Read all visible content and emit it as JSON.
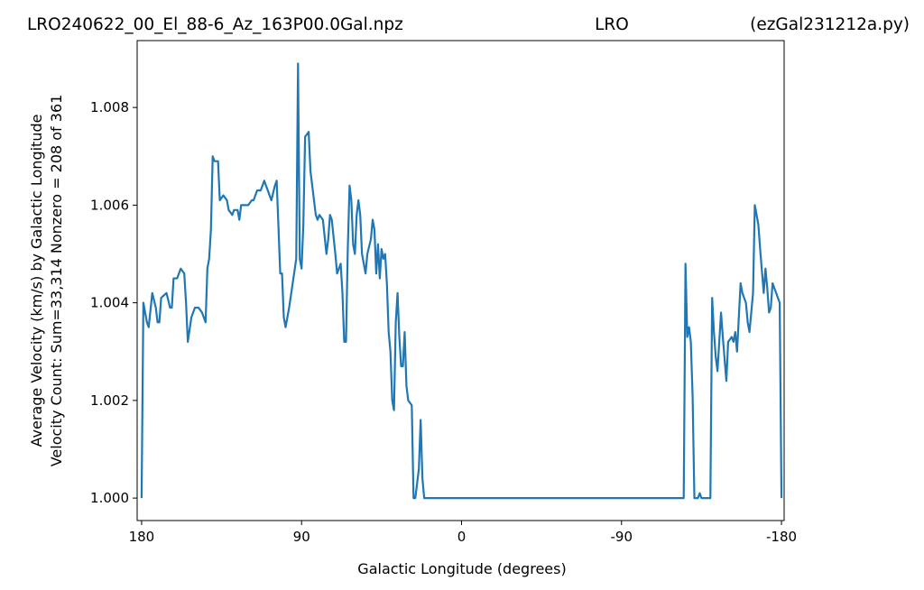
{
  "chart_data": {
    "type": "line",
    "title": "LRO240622_00_El_88-6_Az_163P00.0Gal.npz",
    "title_center": "LRO",
    "title_right": "(ezGal231212a.py)",
    "xlabel": "Galactic Longitude (degrees)",
    "ylabel": [
      "Average Velocity (km/s) by Galactic Longitude",
      "Velocity Count: Sum=33,314 Nonzero = 208 of 361"
    ],
    "color": "#1f77b4",
    "xlim": [
      182.5,
      -181.5
    ],
    "ylim": [
      0.99954,
      1.00937
    ],
    "xticks": [
      180,
      90,
      0,
      -90,
      -180
    ],
    "yticks": [
      {
        "value": 1.0,
        "label": "1.000"
      },
      {
        "value": 1.002,
        "label": "1.002"
      },
      {
        "value": 1.004,
        "label": "1.004"
      },
      {
        "value": 1.006,
        "label": "1.006"
      },
      {
        "value": 1.008,
        "label": "1.008"
      }
    ],
    "x": [
      180,
      179,
      177,
      176,
      174,
      172,
      171,
      170,
      169,
      166,
      164,
      163,
      162,
      160,
      158,
      156,
      155,
      154,
      152,
      150,
      148,
      146,
      144,
      143,
      142,
      141,
      140,
      139,
      137,
      136,
      134,
      132,
      131,
      129,
      128,
      126,
      125,
      124,
      122,
      120,
      118,
      117,
      115,
      113,
      111,
      109,
      107,
      105,
      104,
      102,
      101,
      100,
      99,
      97,
      95,
      93,
      92,
      91,
      90,
      89,
      88,
      86,
      85,
      84,
      82,
      81,
      80,
      78,
      76,
      75,
      74,
      73,
      71,
      70,
      68,
      67,
      66,
      65,
      64,
      63,
      62,
      61,
      60,
      59,
      58,
      57,
      56,
      54,
      53,
      51,
      50,
      49,
      48,
      47,
      46,
      45,
      44,
      43,
      42,
      41,
      40,
      39,
      38,
      37,
      36,
      35,
      34,
      33,
      32,
      31,
      30,
      28,
      27,
      26,
      24,
      23,
      22,
      21,
      -125,
      -126,
      -127,
      -128,
      -129,
      -130,
      -131,
      -133,
      -134,
      -135,
      -140,
      -141,
      -142,
      -143,
      -144,
      -145,
      -146,
      -147,
      -149,
      -150,
      -152,
      -153,
      -154,
      -155,
      -157,
      -158,
      -160,
      -161,
      -162,
      -164,
      -165,
      -167,
      -168,
      -170,
      -171,
      -172,
      -173,
      -174,
      -175,
      -177,
      -179,
      -180
    ],
    "values": [
      1.0,
      1.004,
      1.0036,
      1.0035,
      1.0042,
      1.0039,
      1.0036,
      1.0036,
      1.0041,
      1.0042,
      1.0039,
      1.0039,
      1.0045,
      1.0045,
      1.0047,
      1.0046,
      1.004,
      1.0032,
      1.0037,
      1.0039,
      1.0039,
      1.0038,
      1.0036,
      1.0047,
      1.0049,
      1.0055,
      1.007,
      1.0069,
      1.0069,
      1.0061,
      1.0062,
      1.0061,
      1.0059,
      1.0058,
      1.0059,
      1.0059,
      1.0057,
      1.006,
      1.006,
      1.006,
      1.0061,
      1.0061,
      1.0063,
      1.0063,
      1.0065,
      1.0063,
      1.0061,
      1.0064,
      1.0065,
      1.0046,
      1.0046,
      1.0037,
      1.0035,
      1.0039,
      1.0044,
      1.0049,
      1.0089,
      1.0049,
      1.0047,
      1.0056,
      1.0074,
      1.0075,
      1.0067,
      1.0064,
      1.0058,
      1.0057,
      1.0058,
      1.0057,
      1.005,
      1.0053,
      1.0058,
      1.0057,
      1.005,
      1.0046,
      1.0048,
      1.0042,
      1.0032,
      1.0032,
      1.0051,
      1.0064,
      1.0061,
      1.0052,
      1.005,
      1.0058,
      1.0061,
      1.0058,
      1.005,
      1.0046,
      1.005,
      1.0053,
      1.0057,
      1.0055,
      1.0046,
      1.0052,
      1.0045,
      1.0051,
      1.0049,
      1.005,
      1.0044,
      1.0034,
      1.003,
      1.002,
      1.0018,
      1.0036,
      1.0042,
      1.0033,
      1.0027,
      1.0027,
      1.0034,
      1.0023,
      1.002,
      1.0019,
      1.0,
      1.0,
      1.0006,
      1.0016,
      1.0004,
      1.0,
      1.0,
      1.0048,
      1.0033,
      1.0035,
      1.0032,
      1.0021,
      1.0,
      1.0,
      1.0001,
      1.0,
      1.0,
      1.0041,
      1.0034,
      1.0029,
      1.0026,
      1.0032,
      1.0038,
      1.0033,
      1.0024,
      1.0032,
      1.0033,
      1.0032,
      1.0034,
      1.003,
      1.0044,
      1.0042,
      1.004,
      1.0036,
      1.0034,
      1.0042,
      1.006,
      1.0056,
      1.0051,
      1.0042,
      1.0047,
      1.0043,
      1.0038,
      1.0039,
      1.0044,
      1.0042,
      1.004,
      1.0
    ]
  }
}
